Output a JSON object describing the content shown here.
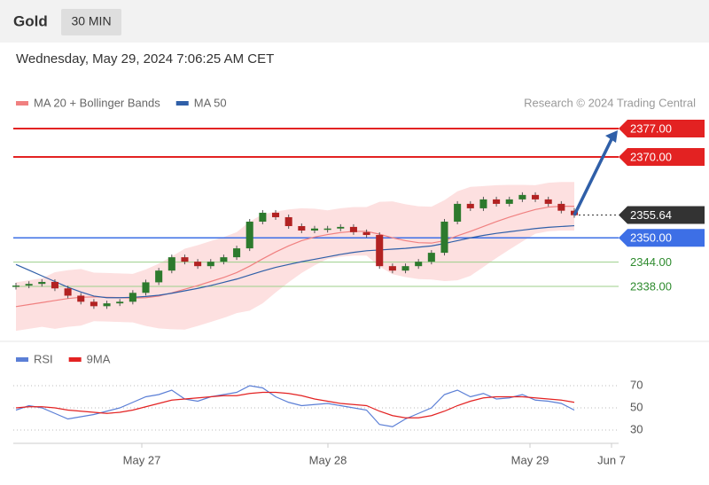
{
  "header": {
    "symbol": "Gold",
    "interval": "30 MIN"
  },
  "timestamp": "Wednesday, May 29, 2024 7:06:25 AM CET",
  "chart_data": [
    {
      "type": "candlestick",
      "legend": [
        {
          "name": "MA 20 + Bollinger Bands",
          "color": "#f08080"
        },
        {
          "name": "MA 50",
          "color": "#2f5fa8"
        }
      ],
      "credit": "Research © 2024 Trading Central",
      "ylim": [
        2325.5,
        2380.3
      ],
      "closes": [
        2338.2,
        2338.6,
        2339.1,
        2337.5,
        2335.7,
        2334.2,
        2333.1,
        2333.8,
        2334.2,
        2336.4,
        2339.0,
        2341.9,
        2345.2,
        2344.1,
        2343.0,
        2344.1,
        2345.2,
        2347.4,
        2354.0,
        2356.2,
        2355.1,
        2352.9,
        2351.8,
        2352.3,
        2352.3,
        2352.7,
        2351.4,
        2350.7,
        2343.0,
        2341.9,
        2343.0,
        2344.1,
        2346.3,
        2354.0,
        2358.4,
        2357.3,
        2359.5,
        2358.4,
        2359.5,
        2360.6,
        2359.5,
        2358.4,
        2356.7,
        2355.6
      ],
      "ma20": [
        2333.0,
        2333.5,
        2334.0,
        2334.5,
        2335.0,
        2335.3,
        2335.4,
        2335.3,
        2335.2,
        2335.1,
        2335.2,
        2335.6,
        2336.4,
        2337.3,
        2338.2,
        2339.2,
        2340.2,
        2341.4,
        2343.0,
        2344.8,
        2346.5,
        2348.0,
        2349.3,
        2350.2,
        2350.8,
        2351.3,
        2351.6,
        2351.6,
        2350.9,
        2350.0,
        2349.3,
        2348.8,
        2348.7,
        2349.3,
        2350.5,
        2351.6,
        2352.8,
        2354.0,
        2355.1,
        2356.1,
        2357.0,
        2357.6,
        2357.8,
        2357.8
      ],
      "bb_upper": [
        2339.0,
        2339.5,
        2340.0,
        2341.5,
        2342.0,
        2342.3,
        2341.4,
        2341.3,
        2341.2,
        2341.1,
        2342.2,
        2343.6,
        2345.4,
        2347.3,
        2348.2,
        2349.2,
        2350.2,
        2351.4,
        2354.0,
        2355.8,
        2356.5,
        2357.0,
        2357.3,
        2357.2,
        2356.8,
        2357.3,
        2357.6,
        2357.6,
        2358.9,
        2359.0,
        2358.3,
        2357.8,
        2357.7,
        2359.3,
        2361.5,
        2362.6,
        2362.8,
        2363.0,
        2363.1,
        2363.1,
        2363.0,
        2363.6,
        2363.8,
        2363.8
      ],
      "bb_lower": [
        2327.0,
        2327.5,
        2328.0,
        2327.5,
        2328.0,
        2328.3,
        2329.4,
        2329.3,
        2329.2,
        2329.1,
        2328.2,
        2327.6,
        2327.4,
        2327.3,
        2328.2,
        2329.2,
        2330.2,
        2331.4,
        2332.0,
        2333.8,
        2336.5,
        2339.0,
        2341.3,
        2343.2,
        2344.8,
        2345.3,
        2345.6,
        2345.6,
        2342.9,
        2341.0,
        2340.3,
        2339.8,
        2339.7,
        2339.3,
        2339.5,
        2340.6,
        2342.8,
        2345.0,
        2347.1,
        2349.1,
        2351.0,
        2351.6,
        2351.8,
        2351.8
      ],
      "ma50": [
        2343.4,
        2342.0,
        2340.6,
        2339.2,
        2337.8,
        2336.6,
        2335.6,
        2335.2,
        2335.2,
        2335.3,
        2335.5,
        2335.8,
        2336.3,
        2336.9,
        2337.5,
        2338.2,
        2339.0,
        2339.8,
        2340.8,
        2341.8,
        2342.7,
        2343.4,
        2344.1,
        2344.7,
        2345.3,
        2345.9,
        2346.4,
        2346.8,
        2347.0,
        2347.2,
        2347.4,
        2347.7,
        2348.0,
        2348.6,
        2349.3,
        2350.0,
        2350.6,
        2351.1,
        2351.5,
        2351.9,
        2352.3,
        2352.6,
        2352.8,
        2353.0
      ],
      "levels": [
        {
          "value": 2377,
          "label": "2377.00",
          "color": "#e32222"
        },
        {
          "value": 2370,
          "label": "2370.00",
          "color": "#e32222"
        },
        {
          "value": 2355.64,
          "label": "2355.64",
          "color": "#333333"
        },
        {
          "value": 2350,
          "label": "2350.00",
          "color": "#3d6fe6"
        },
        {
          "value": 2344,
          "label": "2344.00",
          "color": "#2e8b2e"
        },
        {
          "value": 2338,
          "label": "2338.00",
          "color": "#2e8b2e"
        }
      ]
    },
    {
      "type": "line",
      "series": [
        {
          "name": "RSI",
          "color": "#5b7fd6",
          "values": [
            48,
            52,
            50,
            45,
            40,
            42,
            44,
            47,
            50,
            55,
            60,
            62,
            66,
            58,
            56,
            60,
            62,
            64,
            70,
            68,
            60,
            55,
            52,
            53,
            54,
            52,
            50,
            48,
            35,
            33,
            40,
            45,
            50,
            62,
            66,
            60,
            63,
            58,
            59,
            62,
            57,
            56,
            54,
            48
          ]
        },
        {
          "name": "9MA",
          "color": "#e32222",
          "values": [
            50,
            51,
            51,
            50,
            48,
            47,
            46,
            45,
            46,
            48,
            51,
            54,
            57,
            58,
            59,
            60,
            61,
            61,
            63,
            64,
            64,
            63,
            61,
            58,
            56,
            54,
            53,
            52,
            47,
            43,
            41,
            41,
            43,
            47,
            52,
            56,
            59,
            60,
            60,
            60,
            59,
            58,
            57,
            55
          ]
        }
      ],
      "ylim": [
        22,
        78
      ],
      "yticks": [
        70,
        50,
        30
      ],
      "x_labels": [
        "May 27",
        "May 28",
        "May 29",
        "Jun 7"
      ]
    }
  ]
}
